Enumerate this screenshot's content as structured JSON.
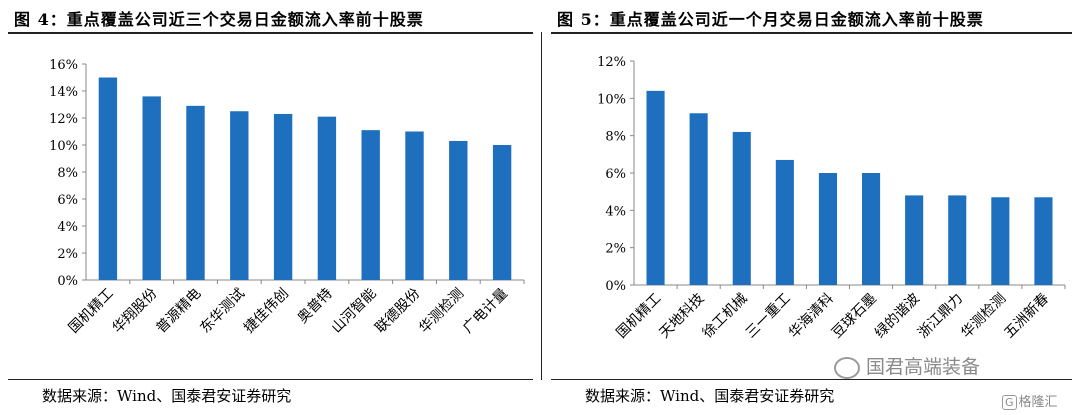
{
  "charts": [
    {
      "title": "图 4：重点覆盖公司近三个交易日金额流入率前十股票",
      "source": "数据来源：Wind、国泰君安证券研究"
    },
    {
      "title": "图 5：重点覆盖公司近一个月交易日金额流入率前十股票",
      "source": "数据来源：Wind、国泰君安证券研究"
    }
  ],
  "watermark": {
    "text": "国君高端装备",
    "icon": "wechat-icon"
  },
  "logo": {
    "text": "格隆汇",
    "box": "G"
  },
  "colors": {
    "bar": "#1f6fbf",
    "axis": "#888888",
    "text": "#000000"
  },
  "chart_data": [
    {
      "type": "bar",
      "title": "图 4：重点覆盖公司近三个交易日金额流入率前十股票",
      "categories": [
        "国机精工",
        "华翔股份",
        "普源精电",
        "东华测试",
        "捷佳伟创",
        "奥普特",
        "山河智能",
        "联德股份",
        "华测检测",
        "广电计量"
      ],
      "values": [
        15.0,
        13.6,
        12.9,
        12.5,
        12.3,
        12.1,
        11.1,
        11.0,
        10.3,
        10.0
      ],
      "value_unit": "%",
      "ylim": [
        0,
        16
      ],
      "yticks": [
        0,
        2,
        4,
        6,
        8,
        10,
        12,
        14,
        16
      ],
      "ytick_labels": [
        "0%",
        "2%",
        "4%",
        "6%",
        "8%",
        "10%",
        "12%",
        "14%",
        "16%"
      ],
      "grid": false,
      "legend": "none"
    },
    {
      "type": "bar",
      "title": "图 5：重点覆盖公司近一个月交易日金额流入率前十股票",
      "categories": [
        "国机精工",
        "天地科技",
        "徐工机械",
        "三一重工",
        "华海清科",
        "豆球石墨",
        "绿的谐波",
        "浙江鼎力",
        "华测检测",
        "五洲新春"
      ],
      "values": [
        10.4,
        9.2,
        8.2,
        6.7,
        6.0,
        6.0,
        4.8,
        4.8,
        4.7,
        4.7
      ],
      "value_unit": "%",
      "ylim": [
        0,
        12
      ],
      "yticks": [
        0,
        2,
        4,
        6,
        8,
        10,
        12
      ],
      "ytick_labels": [
        "0%",
        "2%",
        "4%",
        "6%",
        "8%",
        "10%",
        "12%"
      ],
      "grid": false,
      "legend": "none"
    }
  ]
}
